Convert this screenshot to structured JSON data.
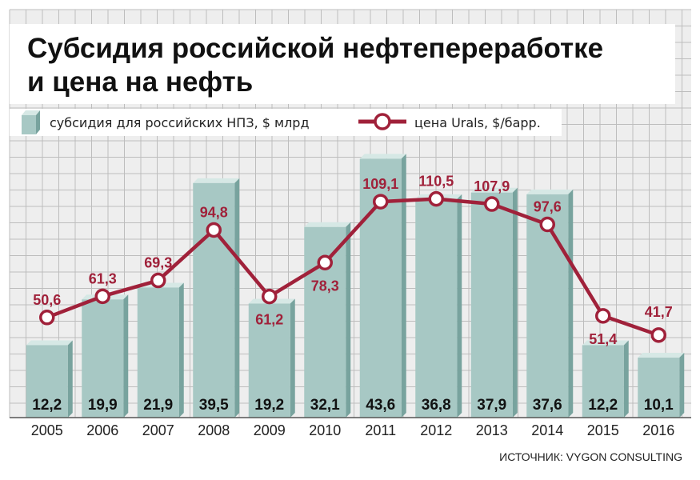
{
  "chart_data": {
    "type": "bar",
    "title_lines": [
      "Субсидия российской нефтепереработке",
      "и цена на нефть"
    ],
    "categories": [
      "2005",
      "2006",
      "2007",
      "2008",
      "2009",
      "2010",
      "2011",
      "2012",
      "2013",
      "2014",
      "2015",
      "2016"
    ],
    "series": [
      {
        "name": "субсидия для российских НПЗ, $ млрд",
        "type": "bar",
        "values": [
          12.2,
          19.9,
          21.9,
          39.5,
          19.2,
          32.1,
          43.6,
          36.8,
          37.9,
          37.6,
          12.2,
          10.1
        ],
        "labels": [
          "12,2",
          "19,9",
          "21,9",
          "39,5",
          "19,2",
          "32,1",
          "43,6",
          "36,8",
          "37,9",
          "37,6",
          "12,2",
          "10,1"
        ]
      },
      {
        "name": "цена Urals, $/барр.",
        "type": "line",
        "values": [
          50.6,
          61.3,
          69.3,
          94.8,
          61.2,
          78.3,
          109.1,
          110.5,
          107.9,
          97.6,
          51.4,
          41.7
        ],
        "labels": [
          "50,6",
          "61,3",
          "69,3",
          "94,8",
          "61,2",
          "78,3",
          "109,1",
          "110,5",
          "107,9",
          "97,6",
          "51,4",
          "41,7"
        ]
      }
    ],
    "bar_axis_range": [
      0,
      45
    ],
    "line_axis_range": [
      0,
      135
    ],
    "grid": true,
    "legend_position": "top",
    "source": "ИСТОЧНИК: VYGON CONSULTING",
    "colors": {
      "bar_front": "#a7c8c4",
      "bar_side": "#78a39e",
      "bar_top": "#d6e8e5",
      "line": "#a0213a",
      "grid_bg": "#eeeeee",
      "grid_line": "#bdbdbd"
    }
  }
}
